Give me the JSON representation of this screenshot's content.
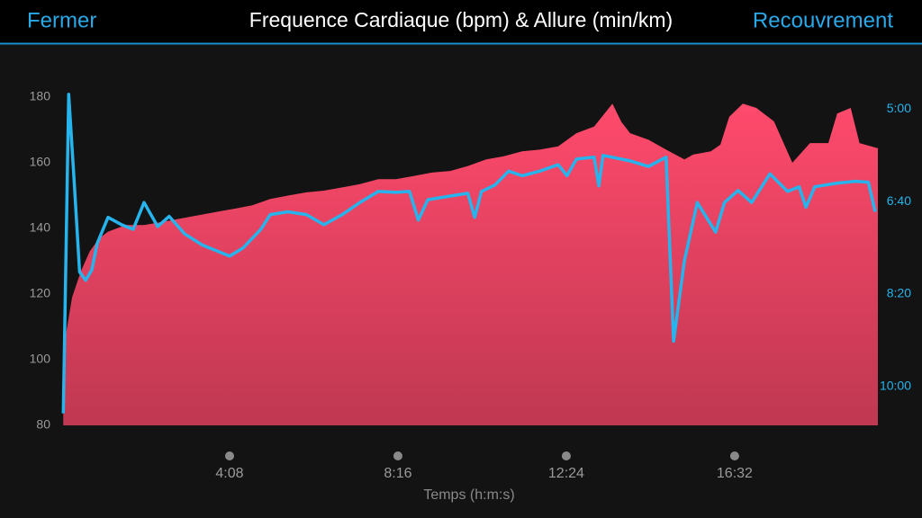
{
  "header": {
    "left": "Fermer",
    "title": "Frequence Cardiaque (bpm) & Allure (min/km)",
    "right": "Recouvrement"
  },
  "chart_data": {
    "type": "area",
    "xlabel": "Temps (h:m:s)",
    "xlim": [
      0,
      1203
    ],
    "xticks": [
      {
        "value": 248,
        "label": "4:08"
      },
      {
        "value": 496,
        "label": "8:16"
      },
      {
        "value": 744,
        "label": "12:24"
      },
      {
        "value": 992,
        "label": "16:32"
      }
    ],
    "ylim": [
      80,
      180
    ],
    "yticks": [
      80,
      100,
      120,
      140,
      160,
      180
    ],
    "y2lim": [
      642,
      287
    ],
    "y2ticks": [
      {
        "value": 300,
        "label": "5:00"
      },
      {
        "value": 400,
        "label": "6:40"
      },
      {
        "value": 500,
        "label": "8:20"
      },
      {
        "value": 600,
        "label": "10:00"
      }
    ],
    "series": [
      {
        "color": "#ff4a6c",
        "x": [
          3,
          16,
          29,
          42,
          56,
          69,
          95,
          122,
          149,
          175,
          202,
          228,
          255,
          281,
          308,
          334,
          361,
          387,
          414,
          440,
          467,
          493,
          520,
          546,
          573,
          599,
          626,
          652,
          679,
          705,
          732,
          759,
          785,
          812,
          825,
          838,
          865,
          891,
          918,
          931,
          957,
          971,
          984,
          1004,
          1024,
          1050,
          1077,
          1103,
          1130,
          1143,
          1163,
          1176,
          1203
        ],
        "values": [
          103,
          119,
          127,
          133,
          137,
          139,
          141,
          141,
          142,
          143,
          144,
          145,
          146,
          147,
          149,
          150,
          151,
          151.5,
          152.5,
          153.5,
          155,
          155,
          156,
          157,
          157.5,
          159,
          161,
          162,
          163.5,
          164,
          165,
          169,
          171,
          178,
          172.5,
          169,
          167,
          164,
          161,
          162.5,
          163.5,
          165.5,
          174,
          178,
          176.7,
          172.6,
          160,
          166,
          166,
          175,
          176.7,
          166,
          164.4
        ]
      },
      {
        "color": "#27b4ec",
        "axis": "y2",
        "x": [
          3,
          11,
          19,
          27,
          36,
          45,
          53,
          69,
          89,
          106,
          122,
          142,
          159,
          182,
          208,
          248,
          268,
          294,
          308,
          334,
          361,
          387,
          414,
          440,
          467,
          493,
          513,
          526,
          540,
          573,
          599,
          609,
          619,
          639,
          659,
          679,
          705,
          732,
          745,
          759,
          785,
          792,
          798,
          838,
          865,
          891,
          902,
          918,
          937,
          964,
          977,
          997,
          1017,
          1044,
          1070,
          1087,
          1097,
          1110,
          1143,
          1170,
          1189,
          1199
        ],
        "values": [
          629,
          284,
          377,
          476,
          485,
          474,
          445,
          417,
          425,
          430,
          401,
          427,
          416,
          435,
          447,
          459,
          450,
          430,
          414,
          411,
          414,
          425,
          414,
          401,
          389,
          390,
          389,
          420,
          398,
          394,
          391,
          417,
          389,
          382,
          367,
          372,
          367,
          360,
          372,
          354,
          352,
          383,
          350,
          356,
          362,
          352,
          551,
          464,
          401,
          433,
          401,
          388,
          401,
          370,
          389,
          384,
          406,
          384,
          380,
          378,
          379,
          411
        ]
      }
    ]
  }
}
